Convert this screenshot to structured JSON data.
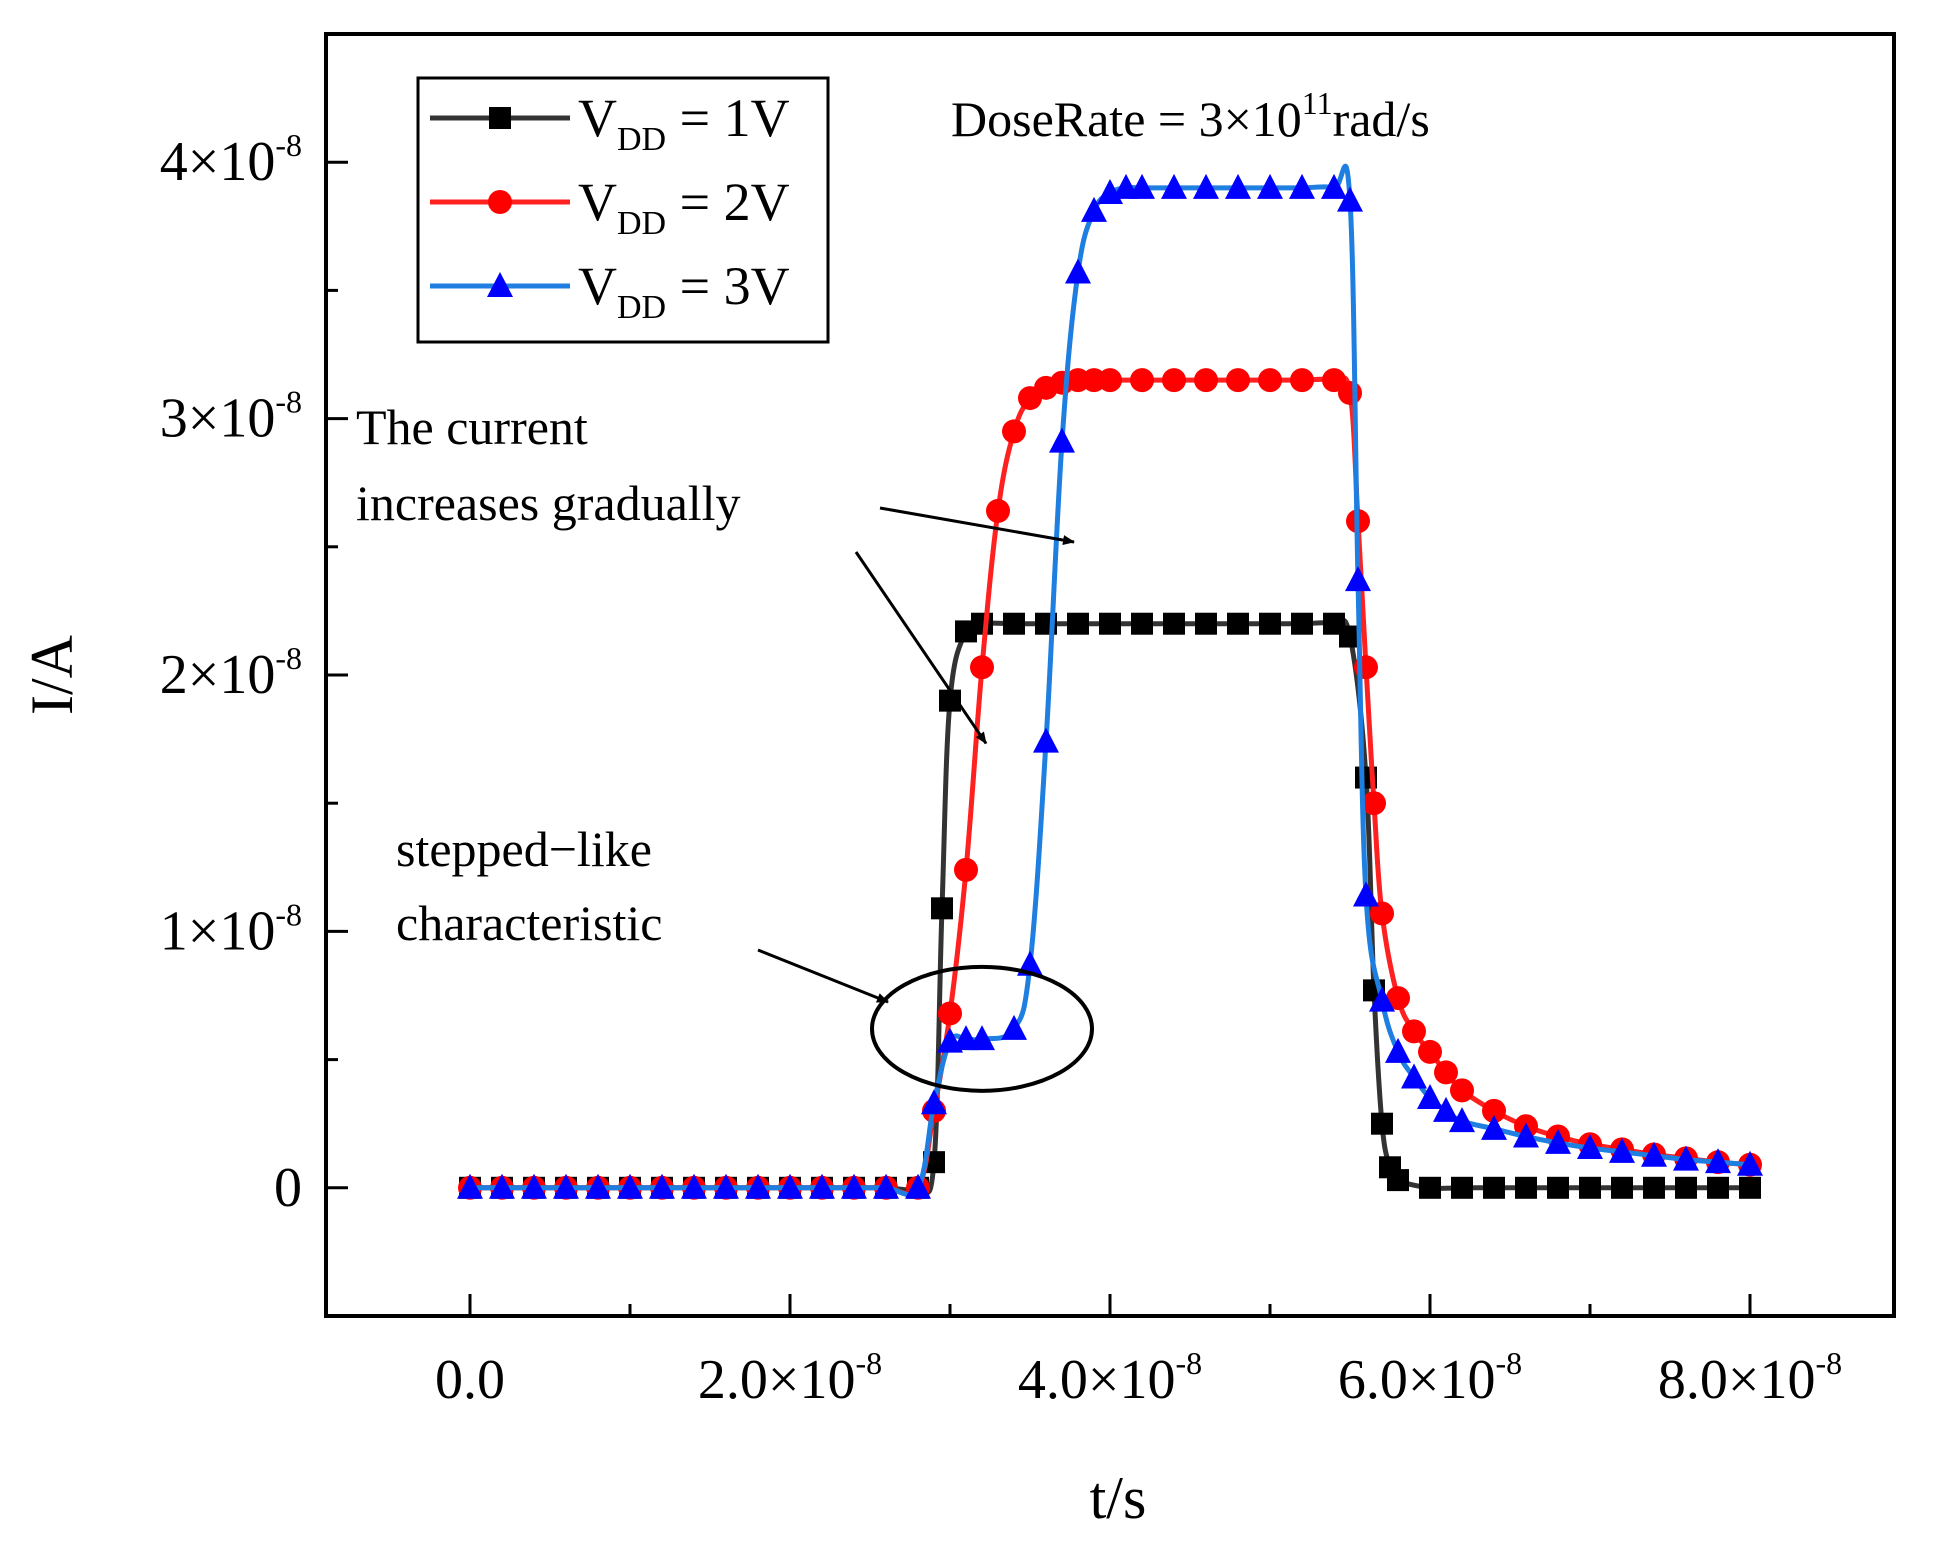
{
  "chart_data": {
    "type": "line",
    "title": "",
    "xlabel": "t/s",
    "ylabel": "I/A",
    "xlim": [
      -9e-09,
      8.9e-08
    ],
    "ylim": [
      -5e-09,
      4.5e-08
    ],
    "x_ticks": [
      {
        "value": 0,
        "mantissa": "0.0",
        "exp": ""
      },
      {
        "value": 2e-08,
        "mantissa": "2.0×10",
        "exp": "-8"
      },
      {
        "value": 4e-08,
        "mantissa": "4.0×10",
        "exp": "-8"
      },
      {
        "value": 6e-08,
        "mantissa": "6.0×10",
        "exp": "-8"
      },
      {
        "value": 8e-08,
        "mantissa": "8.0×10",
        "exp": "-8"
      }
    ],
    "x_minor_ticks": [
      1e-08,
      3e-08,
      5e-08,
      7e-08
    ],
    "y_ticks": [
      {
        "value": 0,
        "mantissa": "0",
        "exp": ""
      },
      {
        "value": 1e-08,
        "mantissa": "1×10",
        "exp": "-8"
      },
      {
        "value": 2e-08,
        "mantissa": "2×10",
        "exp": "-8"
      },
      {
        "value": 3e-08,
        "mantissa": "3×10",
        "exp": "-8"
      },
      {
        "value": 4e-08,
        "mantissa": "4×10",
        "exp": "-8"
      }
    ],
    "y_minor_ticks": [
      5e-09,
      1.5e-08,
      2.5e-08,
      3.5e-08
    ],
    "series": [
      {
        "name": "VDD = 1V",
        "label_main": "V",
        "label_sub": "DD",
        "label_rest": " = 1V",
        "color": "#333333",
        "marker_color": "#000000",
        "marker": "square",
        "x": [
          0,
          2e-09,
          4e-09,
          6e-09,
          8e-09,
          1e-08,
          1.2e-08,
          1.4e-08,
          1.6e-08,
          1.8e-08,
          2e-08,
          2.2e-08,
          2.4e-08,
          2.6e-08,
          2.8e-08,
          2.9e-08,
          2.95e-08,
          3e-08,
          3.1e-08,
          3.2e-08,
          3.4e-08,
          3.6e-08,
          3.8e-08,
          4e-08,
          4.2e-08,
          4.4e-08,
          4.6e-08,
          4.8e-08,
          5e-08,
          5.2e-08,
          5.4e-08,
          5.5e-08,
          5.6e-08,
          5.65e-08,
          5.7e-08,
          5.75e-08,
          5.8e-08,
          6e-08,
          6.2e-08,
          6.4e-08,
          6.6e-08,
          6.8e-08,
          7e-08,
          7.2e-08,
          7.4e-08,
          7.6e-08,
          7.8e-08,
          8e-08
        ],
        "y": [
          0,
          0,
          0,
          0,
          0,
          0,
          0,
          0,
          0,
          0,
          0,
          0,
          0,
          0,
          0,
          1e-09,
          1.09e-08,
          1.9e-08,
          2.17e-08,
          2.2e-08,
          2.2e-08,
          2.2e-08,
          2.2e-08,
          2.2e-08,
          2.2e-08,
          2.2e-08,
          2.2e-08,
          2.2e-08,
          2.2e-08,
          2.2e-08,
          2.2e-08,
          2.15e-08,
          1.6e-08,
          7.7e-09,
          2.5e-09,
          8e-10,
          3e-10,
          0,
          0,
          0,
          0,
          0,
          0,
          0,
          0,
          0,
          0,
          0
        ]
      },
      {
        "name": "VDD = 2V",
        "label_main": "V",
        "label_sub": "DD",
        "label_rest": " = 2V",
        "color": "#ff2020",
        "marker_color": "#ff0000",
        "marker": "circle",
        "x": [
          0,
          2e-09,
          4e-09,
          6e-09,
          8e-09,
          1e-08,
          1.2e-08,
          1.4e-08,
          1.6e-08,
          1.8e-08,
          2e-08,
          2.2e-08,
          2.4e-08,
          2.6e-08,
          2.8e-08,
          2.9e-08,
          3e-08,
          3.1e-08,
          3.2e-08,
          3.3e-08,
          3.4e-08,
          3.5e-08,
          3.6e-08,
          3.7e-08,
          3.8e-08,
          3.9e-08,
          4e-08,
          4.2e-08,
          4.4e-08,
          4.6e-08,
          4.8e-08,
          5e-08,
          5.2e-08,
          5.4e-08,
          5.5e-08,
          5.55e-08,
          5.6e-08,
          5.65e-08,
          5.7e-08,
          5.8e-08,
          5.9e-08,
          6e-08,
          6.1e-08,
          6.2e-08,
          6.4e-08,
          6.6e-08,
          6.8e-08,
          7e-08,
          7.2e-08,
          7.4e-08,
          7.6e-08,
          7.8e-08,
          8e-08
        ],
        "y": [
          0,
          0,
          0,
          0,
          0,
          0,
          0,
          0,
          0,
          0,
          0,
          0,
          0,
          0,
          0,
          3e-09,
          6.8e-09,
          1.24e-08,
          2.03e-08,
          2.64e-08,
          2.95e-08,
          3.08e-08,
          3.12e-08,
          3.14e-08,
          3.15e-08,
          3.15e-08,
          3.15e-08,
          3.15e-08,
          3.15e-08,
          3.15e-08,
          3.15e-08,
          3.15e-08,
          3.15e-08,
          3.15e-08,
          3.1e-08,
          2.6e-08,
          2.03e-08,
          1.5e-08,
          1.07e-08,
          7.4e-09,
          6.1e-09,
          5.3e-09,
          4.5e-09,
          3.8e-09,
          3e-09,
          2.4e-09,
          2e-09,
          1.7e-09,
          1.5e-09,
          1.3e-09,
          1.15e-09,
          1e-09,
          9e-10
        ]
      },
      {
        "name": "VDD = 3V",
        "label_main": "V",
        "label_sub": "DD",
        "label_rest": " = 3V",
        "color": "#1e7fe0",
        "marker_color": "#0000ff",
        "marker": "triangle",
        "x": [
          0,
          2e-09,
          4e-09,
          6e-09,
          8e-09,
          1e-08,
          1.2e-08,
          1.4e-08,
          1.6e-08,
          1.8e-08,
          2e-08,
          2.2e-08,
          2.4e-08,
          2.6e-08,
          2.8e-08,
          2.9e-08,
          3e-08,
          3.1e-08,
          3.2e-08,
          3.4e-08,
          3.5e-08,
          3.6e-08,
          3.7e-08,
          3.8e-08,
          3.9e-08,
          4e-08,
          4.1e-08,
          4.2e-08,
          4.4e-08,
          4.6e-08,
          4.8e-08,
          5e-08,
          5.2e-08,
          5.4e-08,
          5.5e-08,
          5.55e-08,
          5.6e-08,
          5.7e-08,
          5.8e-08,
          5.9e-08,
          6e-08,
          6.1e-08,
          6.2e-08,
          6.4e-08,
          6.6e-08,
          6.8e-08,
          7e-08,
          7.2e-08,
          7.4e-08,
          7.6e-08,
          7.8e-08,
          8e-08
        ],
        "y": [
          0,
          0,
          0,
          0,
          0,
          0,
          0,
          0,
          0,
          0,
          0,
          0,
          0,
          0,
          0,
          3.3e-09,
          5.7e-09,
          5.8e-09,
          5.8e-09,
          6.2e-09,
          8.7e-09,
          1.74e-08,
          2.91e-08,
          3.57e-08,
          3.81e-08,
          3.88e-08,
          3.9e-08,
          3.9e-08,
          3.9e-08,
          3.9e-08,
          3.9e-08,
          3.9e-08,
          3.9e-08,
          3.9e-08,
          3.85e-08,
          2.37e-08,
          1.14e-08,
          7.3e-09,
          5.3e-09,
          4.3e-09,
          3.5e-09,
          3e-09,
          2.6e-09,
          2.3e-09,
          2e-09,
          1.75e-09,
          1.55e-09,
          1.4e-09,
          1.25e-09,
          1.1e-09,
          1e-09,
          9e-10
        ]
      }
    ],
    "legend_position": "top-left",
    "annotations": [
      {
        "id": "doserate",
        "text_main": "DoseRate = 3×10",
        "text_sup": "11",
        "text_rest": "rad/s"
      },
      {
        "id": "gradual",
        "lines": [
          "The current",
          "increases gradually"
        ],
        "points_to": [
          {
            "x": 3.7e-08,
            "y": 2.55e-08
          },
          {
            "x": 3.3e-08,
            "y": 1.85e-08
          }
        ]
      },
      {
        "id": "stepped",
        "lines": [
          "stepped−like",
          "characteristic"
        ],
        "points_to": [
          {
            "x": 2.6e-08,
            "y": 7.2e-09
          }
        ],
        "ellipse_center": {
          "x": 3.2e-08,
          "y": 6.2e-09
        }
      }
    ],
    "colors": {
      "axis": "#000000",
      "background": "#ffffff",
      "annotation": "#000000"
    }
  }
}
